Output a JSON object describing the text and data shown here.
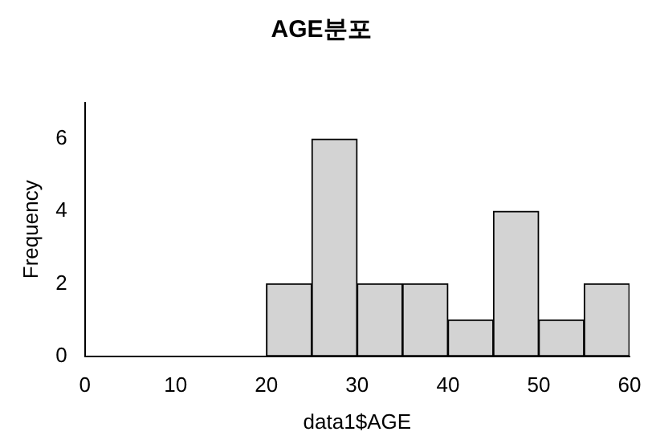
{
  "chart_data": {
    "type": "histogram",
    "title": "AGE분포",
    "xlabel": "data1$AGE",
    "ylabel": "Frequency",
    "bins": [
      20,
      25,
      30,
      35,
      40,
      45,
      50,
      55,
      60
    ],
    "values": [
      2,
      6,
      2,
      2,
      1,
      4,
      1,
      2
    ],
    "color": "#d3d3d3",
    "xlim": [
      0,
      60
    ],
    "xticks": [
      0,
      10,
      20,
      30,
      40,
      50,
      60
    ],
    "ylim": [
      0,
      7
    ],
    "yticks": [
      0,
      2,
      4,
      6
    ],
    "grid": false,
    "legend": false
  }
}
